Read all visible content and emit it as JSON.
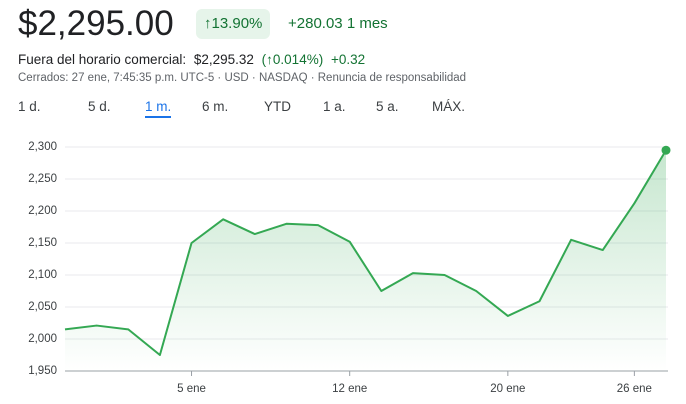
{
  "header": {
    "price": "$2,295.00",
    "change_percent": "↑13.90%",
    "change_value": "+280.03",
    "period": "1 mes",
    "after_hours": {
      "label": "Fuera del horario comercial:",
      "price": "$2,295.32",
      "change_percent": "(↑0.014%)",
      "change_value": "+0.32"
    },
    "status": "Cerrados: 27 ene, 7:45:35 p.m. UTC-5 · USD · NASDAQ · Renuncia de responsabilidad"
  },
  "tabs": [
    "1 d.",
    "5 d.",
    "1 m.",
    "6 m.",
    "YTD",
    "1 a.",
    "5 a.",
    "MÁX."
  ],
  "selected_tab": 2,
  "chart_data": {
    "type": "line",
    "categories": [
      null,
      null,
      null,
      null,
      "5 ene",
      null,
      null,
      null,
      null,
      "12 ene",
      null,
      null,
      null,
      null,
      "20 ene",
      null,
      null,
      null,
      "26 ene",
      null
    ],
    "series": [
      {
        "color": "#34a853",
        "values": [
          2015,
          2021,
          2015,
          1975,
          2150,
          2187,
          2164,
          2180,
          2178,
          2152,
          2075,
          2103,
          2100,
          2075,
          2036,
          2059,
          2155,
          2139,
          2212,
          2295
        ]
      }
    ],
    "ylim": [
      1950,
      2300
    ],
    "yticks": [
      {
        "value": 1950,
        "label": "1,950"
      },
      {
        "value": 2000,
        "label": "2,000"
      },
      {
        "value": 2050,
        "label": "2,050"
      },
      {
        "value": 2100,
        "label": "2,100"
      },
      {
        "value": 2150,
        "label": "2,150"
      },
      {
        "value": 2200,
        "label": "2,200"
      },
      {
        "value": 2250,
        "label": "2,250"
      },
      {
        "value": 2300,
        "label": "2,300"
      }
    ],
    "grid": true
  }
}
